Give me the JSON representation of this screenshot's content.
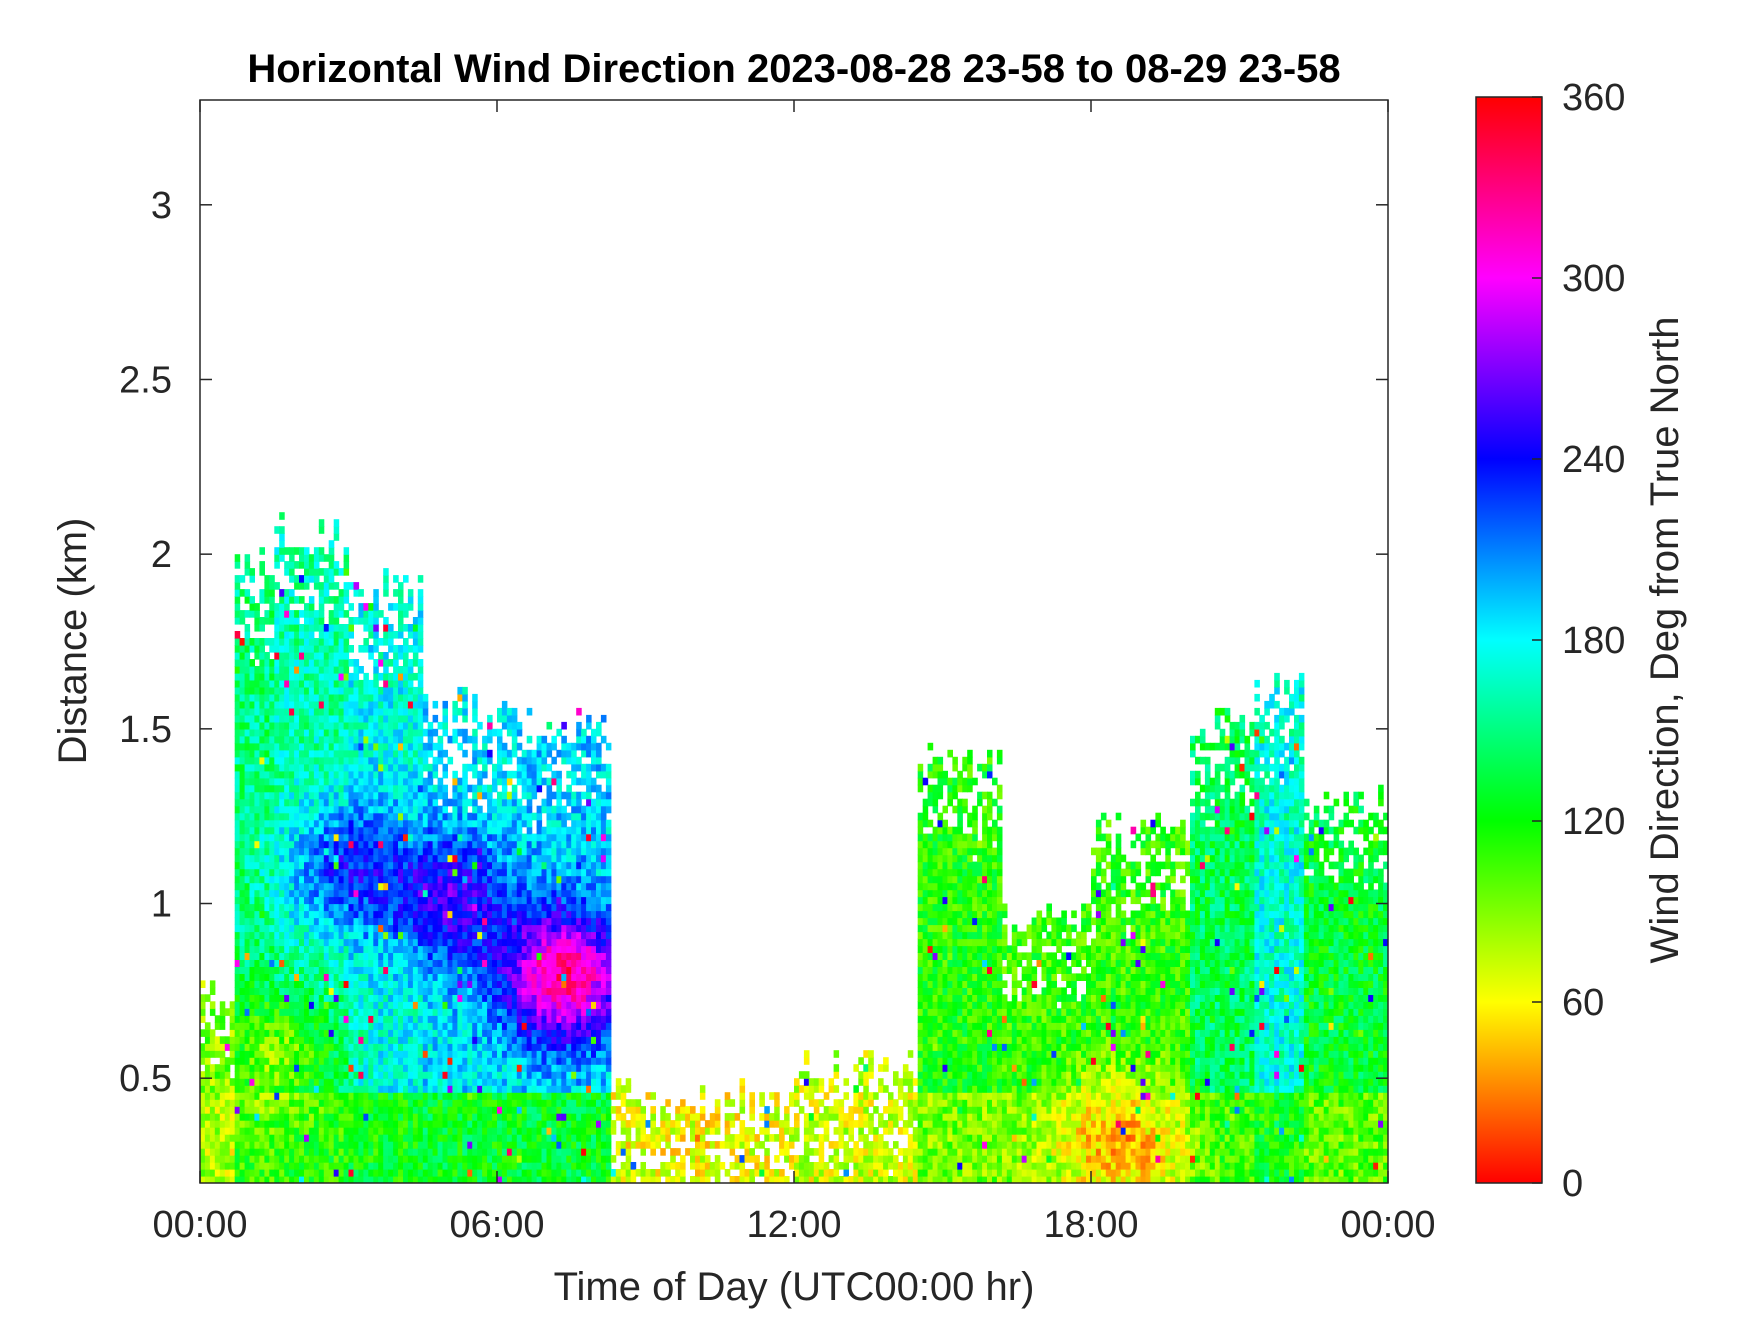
{
  "chart_data": {
    "type": "heatmap",
    "title": "Horizontal Wind Direction 2023-08-28 23-58 to 08-29 23-58",
    "xlabel": "Time of Day (UTC00:00 hr)",
    "ylabel": "Distance (km)",
    "x_ticks": [
      "00:00",
      "06:00",
      "12:00",
      "18:00",
      "00:00"
    ],
    "x_range_hours": [
      0,
      24
    ],
    "y_ticks": [
      "0.5",
      "1",
      "1.5",
      "2",
      "2.5",
      "3"
    ],
    "ylim": [
      0.2,
      3.3
    ],
    "colorbar": {
      "label": "Wind Direction, Deg from True North",
      "ticks": [
        "0",
        "60",
        "120",
        "180",
        "240",
        "300",
        "360"
      ],
      "range": [
        0,
        360
      ],
      "colormap": "hsv",
      "stops": [
        "#ff0000",
        "#ffff00",
        "#00ff00",
        "#00ffff",
        "#0000ff",
        "#ff00ff",
        "#ff0000"
      ]
    },
    "regions": [
      {
        "t0": 0.0,
        "t1": 0.7,
        "top": 0.75,
        "dir": 90
      },
      {
        "t0": 0.7,
        "t1": 1.5,
        "top": 1.95,
        "dir": 150
      },
      {
        "t0": 1.5,
        "t1": 3.0,
        "top": 2.05,
        "dir": 160
      },
      {
        "t0": 3.0,
        "t1": 4.5,
        "top": 1.9,
        "dir": 175
      },
      {
        "t0": 4.5,
        "t1": 6.5,
        "top": 1.55,
        "dir": 185
      },
      {
        "t0": 6.5,
        "t1": 8.3,
        "top": 1.5,
        "dir": 190
      },
      {
        "t0": 8.3,
        "t1": 12.0,
        "top": 0.43,
        "dir": 65
      },
      {
        "t0": 12.0,
        "t1": 14.5,
        "top": 0.52,
        "dir": 75
      },
      {
        "t0": 14.5,
        "t1": 16.2,
        "top": 1.4,
        "dir": 115
      },
      {
        "t0": 16.2,
        "t1": 18.0,
        "top": 0.95,
        "dir": 110
      },
      {
        "t0": 18.0,
        "t1": 20.0,
        "top": 1.2,
        "dir": 110
      },
      {
        "t0": 20.0,
        "t1": 21.3,
        "top": 1.5,
        "dir": 140
      },
      {
        "t0": 21.3,
        "t1": 22.3,
        "top": 1.6,
        "dir": 170
      },
      {
        "t0": 22.3,
        "t1": 24.0,
        "top": 1.3,
        "dir": 130
      }
    ],
    "features": [
      {
        "t": 3.0,
        "z": 1.1,
        "dir": 235
      },
      {
        "t": 5.0,
        "z": 1.0,
        "dir": 255
      },
      {
        "t": 7.3,
        "z": 0.78,
        "dir": 330
      },
      {
        "t": 1.5,
        "z": 0.55,
        "dir": 90
      },
      {
        "t": 10.0,
        "z": 0.3,
        "dir": 55
      },
      {
        "t": 18.5,
        "z": 0.3,
        "dir": 10
      }
    ]
  }
}
